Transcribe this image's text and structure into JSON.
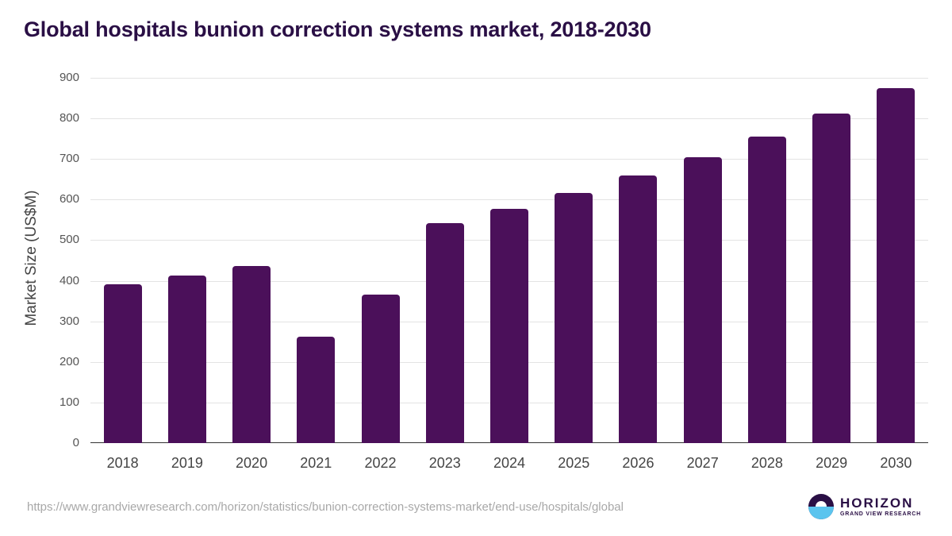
{
  "title": "Global hospitals bunion correction systems market, 2018-2030",
  "source_url": "https://www.grandviewresearch.com/horizon/statistics/bunion-correction-systems-market/end-use/hospitals/global",
  "logo": {
    "main": "HORIZON",
    "sub": "GRAND VIEW RESEARCH",
    "icon": "horizon-sun-icon"
  },
  "colors": {
    "bar": "#4b105a",
    "title": "#2a0f45",
    "logo_blue": "#5bc4ee"
  },
  "chart_data": {
    "type": "bar",
    "title": "Global hospitals bunion correction systems market, 2018-2030",
    "xlabel": "",
    "ylabel": "Market Size (US$M)",
    "ylim": [
      0,
      900
    ],
    "yticks": [
      0,
      100,
      200,
      300,
      400,
      500,
      600,
      700,
      800,
      900
    ],
    "grid": true,
    "legend": null,
    "categories": [
      "2018",
      "2019",
      "2020",
      "2021",
      "2022",
      "2023",
      "2024",
      "2025",
      "2026",
      "2027",
      "2028",
      "2029",
      "2030"
    ],
    "values": [
      391,
      412,
      436,
      262,
      366,
      542,
      577,
      616,
      659,
      704,
      755,
      812,
      874
    ]
  }
}
